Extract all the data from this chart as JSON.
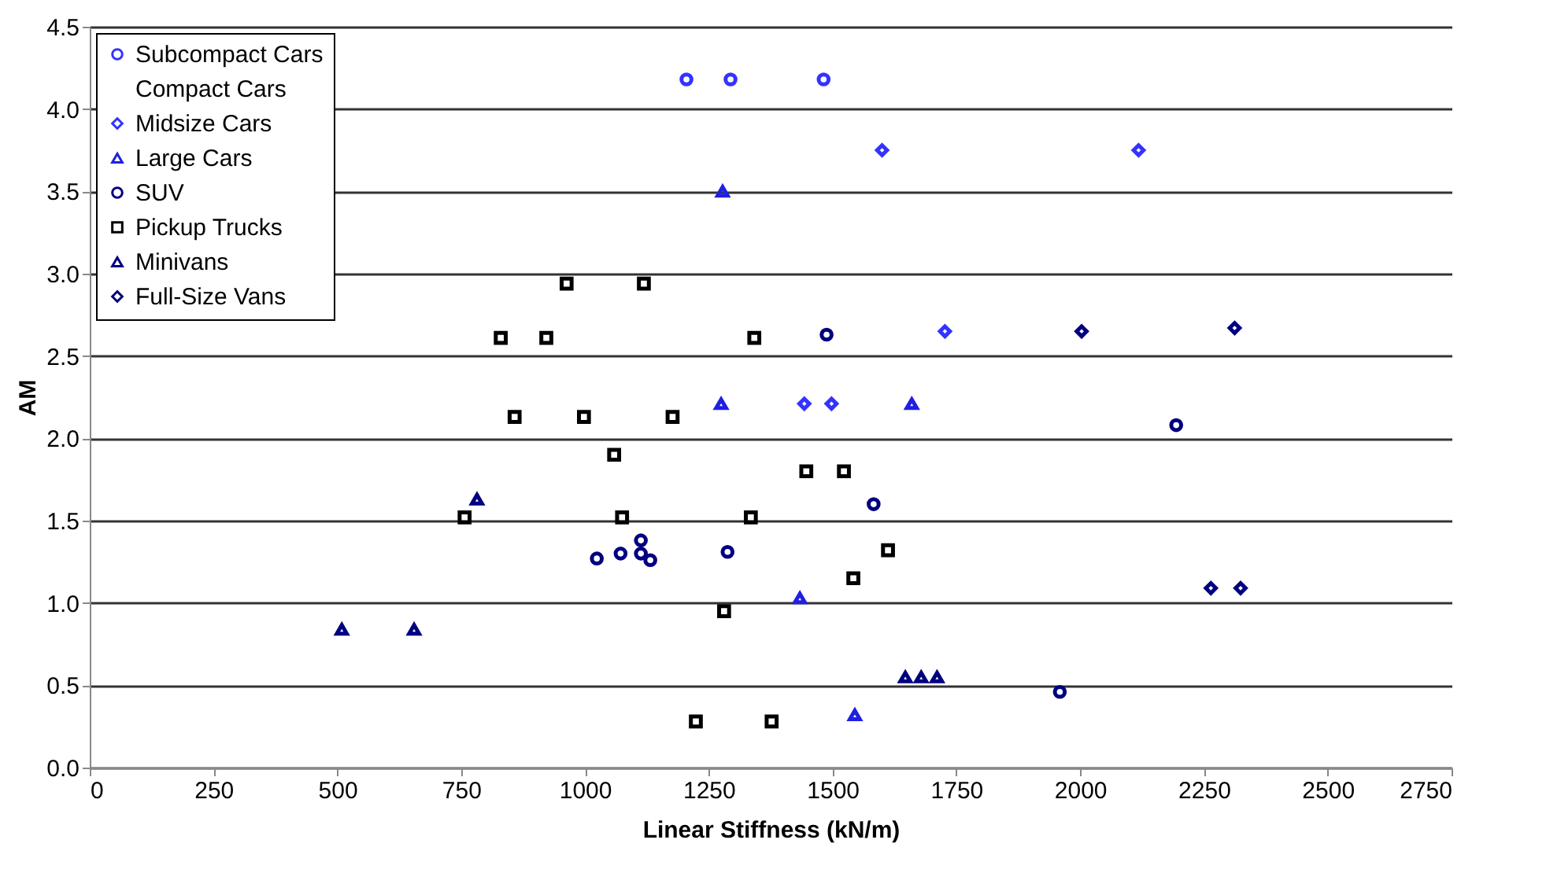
{
  "chart_data": {
    "type": "scatter",
    "xlabel": "Linear Stiffness (kN/m)",
    "ylabel": "AM",
    "xlim": [
      0,
      2750
    ],
    "xticks": [
      0,
      250,
      500,
      750,
      1000,
      1250,
      1500,
      1750,
      2000,
      2250,
      2500,
      2750
    ],
    "ylim": [
      0,
      4.5
    ],
    "yticks": [
      {
        "value": 0,
        "label": "0.0"
      },
      0.5,
      {
        "value": 1,
        "label": "1.0"
      },
      1.5,
      {
        "value": 2,
        "label": "2.0"
      },
      2.5,
      {
        "value": 3,
        "label": "3.0"
      },
      3.5,
      {
        "value": 4,
        "label": "4.0"
      },
      4.5
    ],
    "grid": "y",
    "legend": "top left",
    "series": [
      {
        "name": "Subcompact Cars",
        "color": "#3333ff",
        "marker": "circle",
        "x": [
          1205,
          1294,
          1482
        ],
        "values": [
          4.18,
          4.18,
          4.18
        ]
      },
      {
        "name": "Compact Cars",
        "marker": "none"
      },
      {
        "name": "Midsize Cars",
        "color": "#3333ff",
        "marker": "diamond",
        "x": [
          1600,
          2118,
          1443,
          1498,
          1727
        ],
        "values": [
          3.75,
          3.75,
          2.21,
          2.21,
          2.65
        ]
      },
      {
        "name": "Large Cars",
        "color": "#2020e0",
        "marker": "triangle",
        "x": [
          1278,
          1275,
          1660,
          1434,
          1545
        ],
        "values": [
          3.5,
          2.21,
          2.21,
          1.03,
          0.32
        ]
      },
      {
        "name": "SUV",
        "color": "#000080",
        "marker": "circle",
        "x": [
          1024,
          1072,
          1113,
          1113,
          1132,
          1288,
          1583,
          1959,
          2194,
          1488
        ],
        "values": [
          1.27,
          1.3,
          1.38,
          1.3,
          1.26,
          1.31,
          1.6,
          0.46,
          2.08,
          2.63
        ]
      },
      {
        "name": "Pickup Trucks",
        "color": "#000000",
        "marker": "square",
        "x": [
          963,
          1119,
          830,
          922,
          1342,
          858,
          998,
          1177,
          1059,
          1447,
          1523,
          757,
          1075,
          1335,
          1612,
          1542,
          1281,
          1224,
          1377
        ],
        "values": [
          2.94,
          2.94,
          2.61,
          2.61,
          2.61,
          2.13,
          2.13,
          2.13,
          1.9,
          1.8,
          1.8,
          1.52,
          1.52,
          1.52,
          1.32,
          1.15,
          0.95,
          0.28,
          0.28
        ]
      },
      {
        "name": "Minivans",
        "color": "#000080",
        "marker": "triangle",
        "x": [
          782,
          509,
          655,
          1647,
          1679,
          1711
        ],
        "values": [
          1.63,
          0.84,
          0.84,
          0.55,
          0.55,
          0.55
        ]
      },
      {
        "name": "Full-Size Vans",
        "color": "#000080",
        "marker": "diamond",
        "x": [
          2003,
          2312,
          2264,
          2324
        ],
        "values": [
          2.65,
          2.67,
          1.09,
          1.09
        ]
      }
    ]
  }
}
